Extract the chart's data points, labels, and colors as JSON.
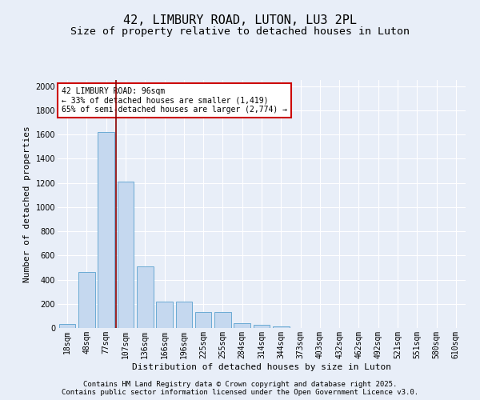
{
  "title1": "42, LIMBURY ROAD, LUTON, LU3 2PL",
  "title2": "Size of property relative to detached houses in Luton",
  "xlabel": "Distribution of detached houses by size in Luton",
  "ylabel": "Number of detached properties",
  "categories": [
    "18sqm",
    "48sqm",
    "77sqm",
    "107sqm",
    "136sqm",
    "166sqm",
    "196sqm",
    "225sqm",
    "255sqm",
    "284sqm",
    "314sqm",
    "344sqm",
    "373sqm",
    "403sqm",
    "432sqm",
    "462sqm",
    "492sqm",
    "521sqm",
    "551sqm",
    "580sqm",
    "610sqm"
  ],
  "values": [
    30,
    460,
    1620,
    1210,
    510,
    220,
    220,
    130,
    130,
    40,
    25,
    15,
    0,
    0,
    0,
    0,
    0,
    0,
    0,
    0,
    0
  ],
  "bar_color": "#c5d8ef",
  "bar_edge_color": "#6aaad4",
  "ylim": [
    0,
    2050
  ],
  "yticks": [
    0,
    200,
    400,
    600,
    800,
    1000,
    1200,
    1400,
    1600,
    1800,
    2000
  ],
  "red_line_x": 2.5,
  "annotation_text": "42 LIMBURY ROAD: 96sqm\n← 33% of detached houses are smaller (1,419)\n65% of semi-detached houses are larger (2,774) →",
  "annotation_box_color": "#ffffff",
  "annotation_box_edge": "#cc0000",
  "background_color": "#e8eef8",
  "grid_color": "#ffffff",
  "footer1": "Contains HM Land Registry data © Crown copyright and database right 2025.",
  "footer2": "Contains public sector information licensed under the Open Government Licence v3.0.",
  "title_fontsize": 11,
  "subtitle_fontsize": 9.5,
  "axis_label_fontsize": 8,
  "tick_fontsize": 7,
  "annotation_fontsize": 7,
  "footer_fontsize": 6.5
}
